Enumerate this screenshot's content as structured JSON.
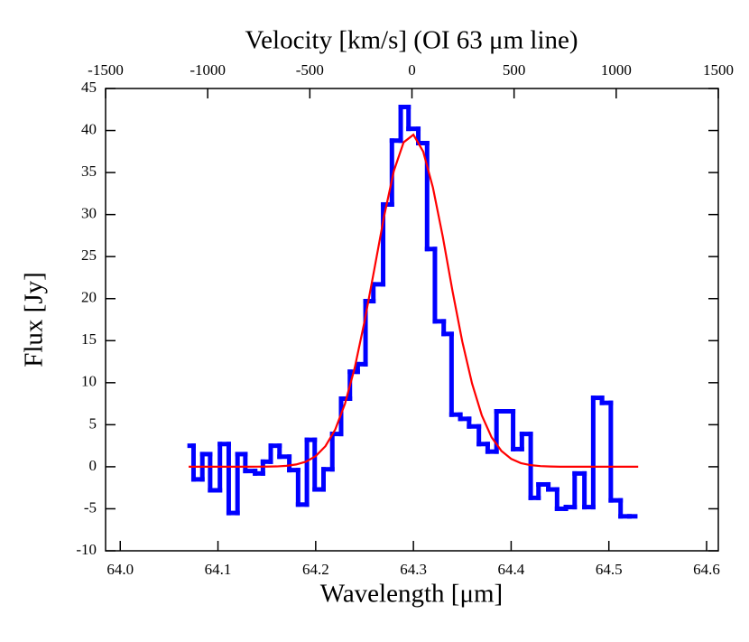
{
  "chart_data": {
    "type": "line",
    "x_label": "Wavelength [μm]",
    "x2_label": "Velocity [km/s] (OI 63 μm line)",
    "y_label": "Flux [Jy]",
    "xlim": [
      63.985,
      64.612
    ],
    "xticks": [
      {
        "value": 64,
        "label": "64.0"
      },
      64.1,
      64.2,
      64.3,
      64.4,
      64.5,
      64.6
    ],
    "x2lim": [
      -1500,
      1500
    ],
    "x2ticks": [
      -1500,
      -1000,
      -500,
      0,
      500,
      1000,
      1500
    ],
    "ylim": [
      -10,
      45
    ],
    "yticks": [
      -10,
      -5,
      0,
      5,
      10,
      15,
      20,
      25,
      30,
      35,
      40,
      45
    ],
    "series": [
      {
        "step": true,
        "color": "#0000ff",
        "bins": [
          64.071,
          64.075,
          64.084,
          64.092,
          64.102,
          64.111,
          64.12,
          64.128,
          64.138,
          64.146,
          64.154,
          64.163,
          64.173,
          64.182,
          64.191,
          64.199,
          64.208,
          64.217,
          64.226,
          64.235,
          64.243,
          64.251,
          64.259,
          64.269,
          64.278,
          64.287,
          64.295,
          64.305,
          64.314,
          64.322,
          64.331,
          64.339,
          64.348,
          64.357,
          64.367,
          64.376,
          64.385,
          64.402,
          64.411,
          64.42,
          64.428,
          64.438,
          64.447,
          64.456,
          64.465,
          64.475,
          64.484,
          64.493,
          64.502,
          64.512,
          64.521,
          64.527
        ],
        "values": [
          2.5,
          -1.5,
          1.5,
          -2.8,
          2.7,
          -5.5,
          1.5,
          -0.5,
          -0.8,
          0.6,
          2.5,
          1.2,
          -0.4,
          -4.5,
          3.2,
          -2.7,
          -0.3,
          3.9,
          8.1,
          11.3,
          12.2,
          19.7,
          21.7,
          31.2,
          38.8,
          42.8,
          40.2,
          38.5,
          25.9,
          17.3,
          15.8,
          6.2,
          5.7,
          4.8,
          2.7,
          1.8,
          6.6,
          2.1,
          3.9,
          -3.7,
          -2.1,
          -2.7,
          -5.0,
          -4.8,
          -0.8,
          -4.8,
          8.2,
          7.6,
          -4.0,
          -5.9,
          -5.9
        ]
      },
      {
        "color": "#ff0000",
        "x": [
          64.07,
          64.08,
          64.09,
          64.1,
          64.11,
          64.12,
          64.13,
          64.14,
          64.15,
          64.16,
          64.17,
          64.18,
          64.19,
          64.2,
          64.21,
          64.22,
          64.23,
          64.24,
          64.25,
          64.26,
          64.27,
          64.28,
          64.29,
          64.3,
          64.31,
          64.32,
          64.33,
          64.34,
          64.35,
          64.36,
          64.37,
          64.38,
          64.39,
          64.4,
          64.41,
          64.42,
          64.43,
          64.44,
          64.45,
          64.46,
          64.47,
          64.48,
          64.49,
          64.5,
          64.51,
          64.52,
          64.53
        ],
        "values": [
          0,
          0,
          0,
          0,
          0,
          0,
          0,
          0.01,
          0.02,
          0.04,
          0.11,
          0.27,
          0.6,
          1.26,
          2.45,
          4.43,
          7.5,
          11.8,
          17.3,
          23.5,
          29.8,
          35.2,
          38.6,
          39.5,
          37.5,
          33.2,
          27.4,
          20.9,
          14.9,
          9.9,
          6.1,
          3.5,
          1.89,
          0.94,
          0.43,
          0.19,
          0.08,
          0.03,
          0,
          0,
          0,
          0,
          0,
          0,
          0,
          0,
          0
        ]
      }
    ]
  }
}
